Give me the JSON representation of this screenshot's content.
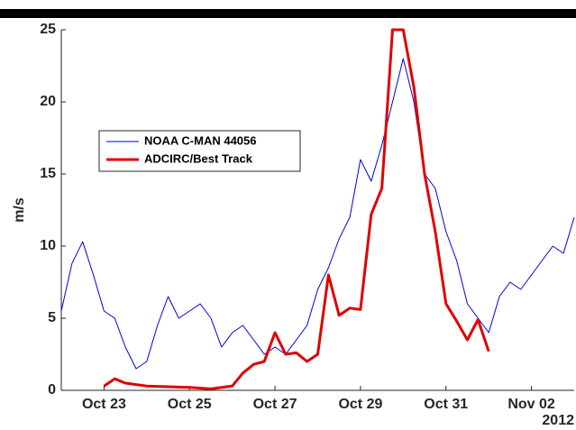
{
  "chart_data": {
    "type": "line",
    "ylabel": "m/s",
    "xlim": [
      "2012-10-22T00:00",
      "2012-11-03T00:00"
    ],
    "xticks": [
      {
        "value": "2012-10-23T00:00",
        "label": "Oct 23"
      },
      {
        "value": "2012-10-25T00:00",
        "label": "Oct 25"
      },
      {
        "value": "2012-10-27T00:00",
        "label": "Oct 27"
      },
      {
        "value": "2012-10-29T00:00",
        "label": "Oct 29"
      },
      {
        "value": "2012-10-31T00:00",
        "label": "Oct 31"
      },
      {
        "value": "2012-11-02T00:00",
        "label": "Nov 02"
      }
    ],
    "x_year": "2012",
    "ylim": [
      0,
      25
    ],
    "yticks": [
      0,
      5,
      10,
      15,
      20,
      25
    ],
    "grid": false,
    "legend": "upper left",
    "series": [
      {
        "name": "NOAA C-MAN 44056",
        "color": "#0000e0",
        "width": 1,
        "x": [
          "2012-10-22T00:00",
          "2012-10-22T06:00",
          "2012-10-22T12:00",
          "2012-10-22T18:00",
          "2012-10-23T00:00",
          "2012-10-23T06:00",
          "2012-10-23T12:00",
          "2012-10-23T18:00",
          "2012-10-24T00:00",
          "2012-10-24T06:00",
          "2012-10-24T12:00",
          "2012-10-24T18:00",
          "2012-10-25T00:00",
          "2012-10-25T06:00",
          "2012-10-25T12:00",
          "2012-10-25T18:00",
          "2012-10-26T00:00",
          "2012-10-26T06:00",
          "2012-10-26T12:00",
          "2012-10-26T18:00",
          "2012-10-27T00:00",
          "2012-10-27T06:00",
          "2012-10-27T12:00",
          "2012-10-27T18:00",
          "2012-10-28T00:00",
          "2012-10-28T06:00",
          "2012-10-28T12:00",
          "2012-10-28T18:00",
          "2012-10-29T00:00",
          "2012-10-29T06:00",
          "2012-10-29T12:00",
          "2012-10-29T18:00",
          "2012-10-30T00:00",
          "2012-10-30T06:00",
          "2012-10-30T12:00",
          "2012-10-30T18:00",
          "2012-10-31T00:00",
          "2012-10-31T06:00",
          "2012-10-31T12:00",
          "2012-10-31T18:00",
          "2012-11-01T00:00",
          "2012-11-01T06:00",
          "2012-11-01T12:00",
          "2012-11-01T18:00",
          "2012-11-02T00:00",
          "2012-11-02T06:00",
          "2012-11-02T12:00",
          "2012-11-02T18:00",
          "2012-11-03T00:00"
        ],
        "values": [
          5.5,
          8.8,
          10.3,
          8,
          5.5,
          5,
          3,
          1.5,
          2,
          4.5,
          6.5,
          5,
          5.5,
          6,
          5,
          3,
          4,
          4.5,
          3.5,
          2.5,
          3,
          2.5,
          3.5,
          4.5,
          7,
          8.5,
          10.5,
          12,
          16,
          14.5,
          17,
          20,
          23,
          20,
          15,
          14,
          11,
          9,
          6,
          5,
          4,
          6.5,
          7.5,
          7,
          8,
          9,
          10,
          9.5,
          12
        ]
      },
      {
        "name": "ADCIRC/Best Track",
        "color": "#e00000",
        "width": 3,
        "x": [
          "2012-10-23T00:00",
          "2012-10-23T06:00",
          "2012-10-23T12:00",
          "2012-10-24T00:00",
          "2012-10-25T00:00",
          "2012-10-25T12:00",
          "2012-10-26T00:00",
          "2012-10-26T06:00",
          "2012-10-26T12:00",
          "2012-10-26T18:00",
          "2012-10-27T00:00",
          "2012-10-27T06:00",
          "2012-10-27T12:00",
          "2012-10-27T18:00",
          "2012-10-28T00:00",
          "2012-10-28T06:00",
          "2012-10-28T12:00",
          "2012-10-28T18:00",
          "2012-10-29T00:00",
          "2012-10-29T06:00",
          "2012-10-29T12:00",
          "2012-10-29T18:00",
          "2012-10-30T00:00",
          "2012-10-30T06:00",
          "2012-10-30T12:00",
          "2012-10-30T18:00",
          "2012-10-31T00:00",
          "2012-10-31T06:00",
          "2012-10-31T12:00",
          "2012-10-31T18:00",
          "2012-11-01T00:00"
        ],
        "values": [
          0.3,
          0.8,
          0.5,
          0.3,
          0.2,
          0.1,
          0.3,
          1.2,
          1.8,
          2,
          4,
          2.5,
          2.6,
          2,
          2.5,
          8,
          5.2,
          5.7,
          5.6,
          12.2,
          14,
          25,
          25,
          21,
          15,
          11,
          6,
          4.8,
          3.5,
          4.9,
          2.7
        ]
      }
    ]
  }
}
